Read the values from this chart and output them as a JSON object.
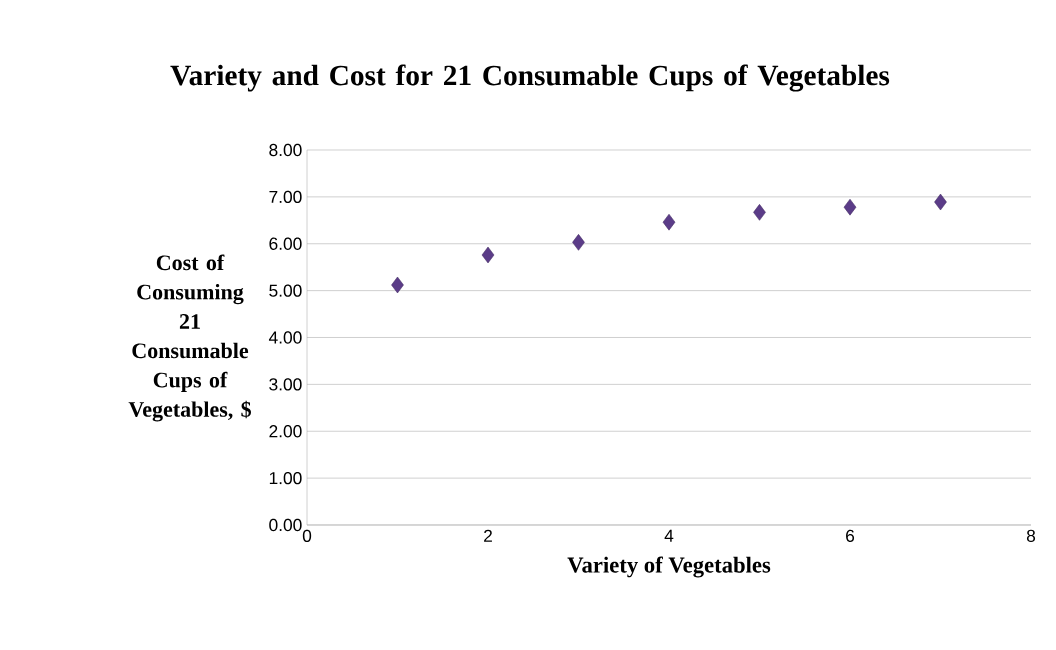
{
  "chart_data": {
    "type": "scatter",
    "title": "Variety and Cost for 21 Consumable Cups of Vegetables",
    "xlabel": "Variety of Vegetables",
    "ylabel": "Cost of Consuming 21 Consumable Cups of Vegetables, $",
    "x": [
      1,
      2,
      3,
      4,
      5,
      6,
      7
    ],
    "values": [
      5.12,
      5.76,
      6.03,
      6.46,
      6.67,
      6.78,
      6.89
    ],
    "color": "#5b3c88",
    "marker": "diamond",
    "grid": "y",
    "xlim": [
      0,
      8
    ],
    "xticks": [
      0,
      2,
      4,
      6,
      8
    ],
    "ylim": [
      0,
      8
    ],
    "yticks": [
      {
        "value": 0,
        "label": "0.00"
      },
      {
        "value": 1,
        "label": "1.00"
      },
      {
        "value": 2,
        "label": "2.00"
      },
      {
        "value": 3,
        "label": "3.00"
      },
      {
        "value": 4,
        "label": "4.00"
      },
      {
        "value": 5,
        "label": "5.00"
      },
      {
        "value": 6,
        "label": "6.00"
      },
      {
        "value": 7,
        "label": "7.00"
      },
      {
        "value": 8,
        "label": "8.00"
      }
    ]
  }
}
